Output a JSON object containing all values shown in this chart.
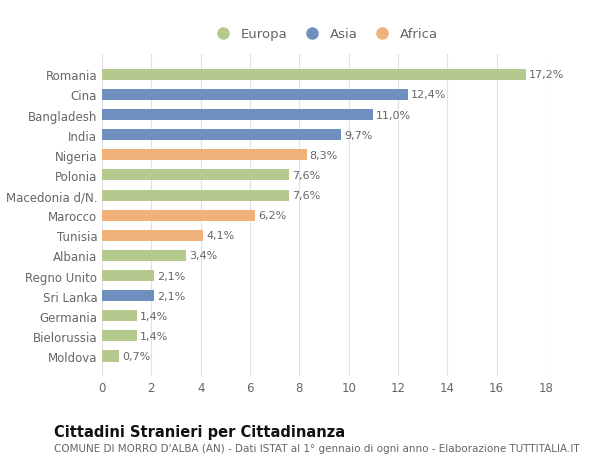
{
  "countries": [
    "Romania",
    "Cina",
    "Bangladesh",
    "India",
    "Nigeria",
    "Polonia",
    "Macedonia d/N.",
    "Marocco",
    "Tunisia",
    "Albania",
    "Regno Unito",
    "Sri Lanka",
    "Germania",
    "Bielorussia",
    "Moldova"
  ],
  "values": [
    17.2,
    12.4,
    11.0,
    9.7,
    8.3,
    7.6,
    7.6,
    6.2,
    4.1,
    3.4,
    2.1,
    2.1,
    1.4,
    1.4,
    0.7
  ],
  "labels": [
    "17,2%",
    "12,4%",
    "11,0%",
    "9,7%",
    "8,3%",
    "7,6%",
    "7,6%",
    "6,2%",
    "4,1%",
    "3,4%",
    "2,1%",
    "2,1%",
    "1,4%",
    "1,4%",
    "0,7%"
  ],
  "continents": [
    "Europa",
    "Asia",
    "Asia",
    "Asia",
    "Africa",
    "Europa",
    "Europa",
    "Africa",
    "Africa",
    "Europa",
    "Europa",
    "Asia",
    "Europa",
    "Europa",
    "Europa"
  ],
  "colors": {
    "Europa": "#b5c98e",
    "Asia": "#6f8fbe",
    "Africa": "#f0b27a"
  },
  "legend_order": [
    "Europa",
    "Asia",
    "Africa"
  ],
  "xlim": [
    0,
    18
  ],
  "xticks": [
    0,
    2,
    4,
    6,
    8,
    10,
    12,
    14,
    16,
    18
  ],
  "title": "Cittadini Stranieri per Cittadinanza",
  "subtitle": "COMUNE DI MORRO D'ALBA (AN) - Dati ISTAT al 1° gennaio di ogni anno - Elaborazione TUTTITALIA.IT",
  "bg_color": "#ffffff",
  "grid_color": "#e0e0e0",
  "label_fontsize": 8,
  "tick_fontsize": 8.5,
  "title_fontsize": 10.5,
  "subtitle_fontsize": 7.5,
  "bar_height": 0.55
}
